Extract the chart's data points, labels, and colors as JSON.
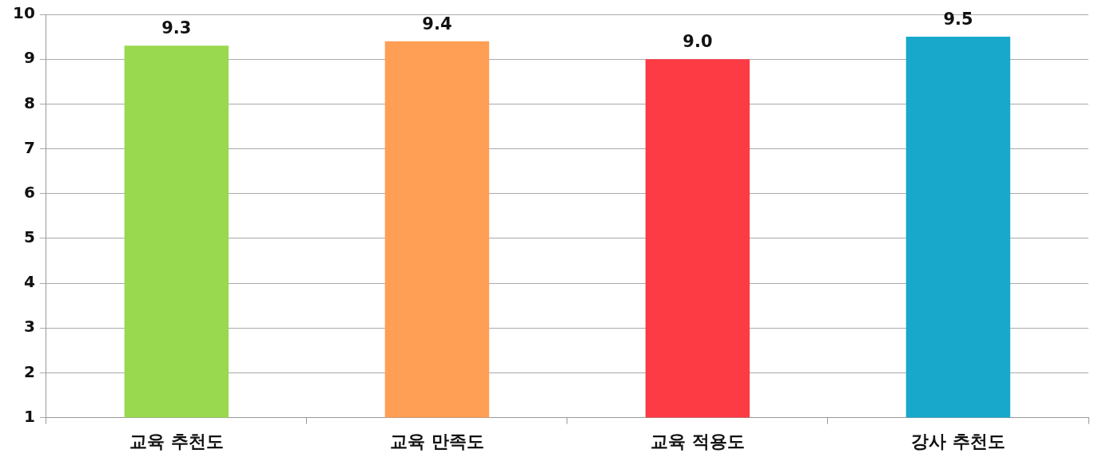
{
  "chart_data": {
    "type": "bar",
    "categories": [
      "교육 추천도",
      "교육 만족도",
      "교육 적용도",
      "강사 추천도"
    ],
    "values": [
      9.3,
      9.4,
      9.0,
      9.5
    ],
    "value_labels": [
      "9.3",
      "9.4",
      "9.0",
      "9.5"
    ],
    "colors": [
      "#99d94f",
      "#ff9f55",
      "#fc3b45",
      "#18a8cc"
    ],
    "ylim": [
      1,
      10
    ],
    "yticks": [
      1,
      2,
      3,
      4,
      5,
      6,
      7,
      8,
      9,
      10
    ],
    "grid": "y",
    "legend": false
  }
}
